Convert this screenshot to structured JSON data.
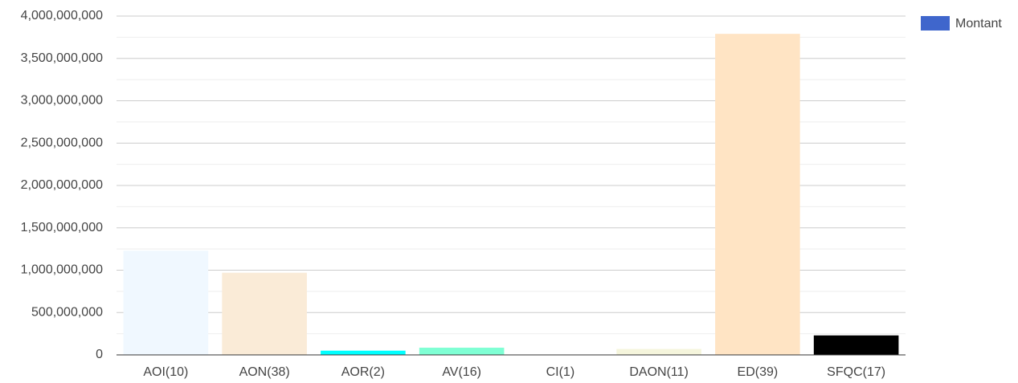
{
  "chart_data": {
    "type": "bar",
    "categories": [
      "AOI(10)",
      "AON(38)",
      "AOR(2)",
      "AV(16)",
      "CI(1)",
      "DAON(11)",
      "ED(39)",
      "SFQC(17)"
    ],
    "series": [
      {
        "name": "Montant",
        "color": "#3f66cc",
        "values": [
          1230000000,
          970000000,
          50000000,
          85000000,
          3000000,
          70000000,
          3790000000,
          230000000
        ],
        "colors": [
          "#f0f8ff",
          "#faebd7",
          "#00ffff",
          "#7fffd4",
          "#f0ffff",
          "#f5f5dc",
          "#ffe4c4",
          "#000000"
        ]
      }
    ],
    "ylim": [
      0,
      4000000000
    ],
    "yticks": [
      0,
      {
        "value": 500000000,
        "label": "500,000,000"
      },
      {
        "value": 1000000000,
        "label": "1,000,000,000"
      },
      {
        "value": 1500000000,
        "label": "1,500,000,000"
      },
      {
        "value": 2000000000,
        "label": "2,000,000,000"
      },
      {
        "value": 2500000000,
        "label": "2,500,000,000"
      },
      {
        "value": 3000000000,
        "label": "3,000,000,000"
      },
      {
        "value": 3500000000,
        "label": "3,500,000,000"
      },
      {
        "value": 4000000000,
        "label": "4,000,000,000"
      }
    ],
    "minor_yticks": [
      250000000,
      750000000,
      1250000000,
      1750000000,
      2250000000,
      2750000000,
      3250000000,
      3750000000
    ],
    "grid": true,
    "legend": "right"
  }
}
